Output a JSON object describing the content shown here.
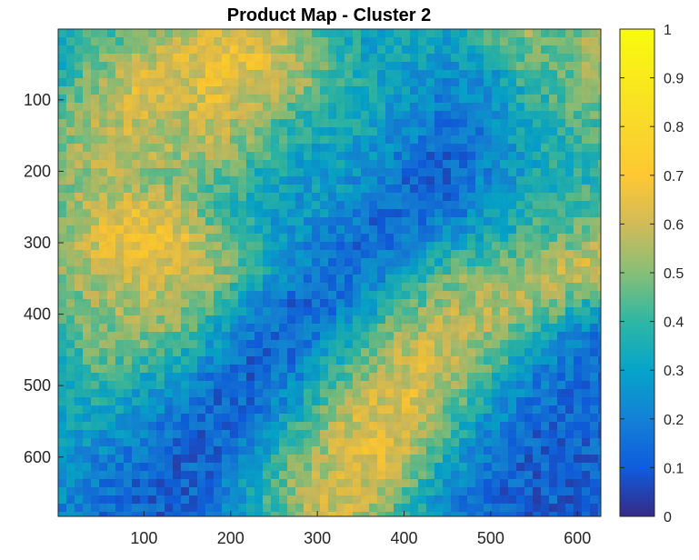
{
  "chart_data": {
    "type": "heatmap",
    "title": "Product Map - Cluster 2",
    "xlabel": "",
    "ylabel": "",
    "xlim": [
      1,
      627
    ],
    "ylim": [
      1,
      683
    ],
    "y_reversed": true,
    "x_ticks": [
      100,
      200,
      300,
      400,
      500,
      600
    ],
    "y_ticks": [
      100,
      200,
      300,
      400,
      500,
      600
    ],
    "colormap": "parula",
    "colorbar": {
      "range": [
        0,
        1
      ],
      "ticks": [
        0,
        0.1,
        0.2,
        0.3,
        0.4,
        0.5,
        0.6,
        0.7,
        0.8,
        0.9,
        1
      ],
      "tick_labels": [
        "0",
        "0.1",
        "0.2",
        "0.3",
        "0.4",
        "0.5",
        "0.6",
        "0.7",
        "0.8",
        "0.9",
        "1"
      ]
    },
    "grid_rows": 17,
    "grid_cols": 15,
    "grid_values": [
      [
        0.34,
        0.4,
        0.45,
        0.52,
        0.62,
        0.6,
        0.53,
        0.38,
        0.3,
        0.34,
        0.33,
        0.46,
        0.53,
        0.46,
        0.6
      ],
      [
        0.35,
        0.48,
        0.58,
        0.62,
        0.69,
        0.67,
        0.55,
        0.42,
        0.33,
        0.31,
        0.28,
        0.3,
        0.46,
        0.48,
        0.58
      ],
      [
        0.4,
        0.52,
        0.63,
        0.6,
        0.66,
        0.6,
        0.55,
        0.42,
        0.32,
        0.28,
        0.22,
        0.26,
        0.38,
        0.45,
        0.5
      ],
      [
        0.5,
        0.56,
        0.6,
        0.55,
        0.6,
        0.52,
        0.4,
        0.38,
        0.33,
        0.24,
        0.18,
        0.23,
        0.34,
        0.42,
        0.45
      ],
      [
        0.5,
        0.56,
        0.58,
        0.55,
        0.56,
        0.48,
        0.32,
        0.3,
        0.28,
        0.18,
        0.12,
        0.2,
        0.32,
        0.38,
        0.4
      ],
      [
        0.48,
        0.55,
        0.52,
        0.5,
        0.45,
        0.35,
        0.3,
        0.3,
        0.22,
        0.14,
        0.14,
        0.25,
        0.32,
        0.38,
        0.4
      ],
      [
        0.46,
        0.6,
        0.66,
        0.6,
        0.44,
        0.34,
        0.28,
        0.25,
        0.15,
        0.14,
        0.18,
        0.28,
        0.38,
        0.42,
        0.5
      ],
      [
        0.52,
        0.62,
        0.7,
        0.66,
        0.52,
        0.4,
        0.25,
        0.18,
        0.14,
        0.22,
        0.3,
        0.38,
        0.42,
        0.5,
        0.58
      ],
      [
        0.5,
        0.58,
        0.62,
        0.62,
        0.55,
        0.38,
        0.22,
        0.14,
        0.2,
        0.32,
        0.48,
        0.5,
        0.56,
        0.62,
        0.64
      ],
      [
        0.44,
        0.52,
        0.56,
        0.54,
        0.42,
        0.22,
        0.13,
        0.16,
        0.3,
        0.46,
        0.55,
        0.58,
        0.56,
        0.44,
        0.3
      ],
      [
        0.4,
        0.48,
        0.5,
        0.46,
        0.32,
        0.16,
        0.13,
        0.24,
        0.44,
        0.56,
        0.6,
        0.52,
        0.4,
        0.22,
        0.16
      ],
      [
        0.38,
        0.44,
        0.4,
        0.34,
        0.2,
        0.12,
        0.18,
        0.38,
        0.52,
        0.62,
        0.58,
        0.45,
        0.26,
        0.16,
        0.14
      ],
      [
        0.34,
        0.36,
        0.3,
        0.22,
        0.14,
        0.14,
        0.26,
        0.48,
        0.6,
        0.64,
        0.52,
        0.34,
        0.18,
        0.14,
        0.14
      ],
      [
        0.32,
        0.3,
        0.22,
        0.16,
        0.12,
        0.18,
        0.38,
        0.55,
        0.66,
        0.6,
        0.42,
        0.24,
        0.14,
        0.12,
        0.14
      ],
      [
        0.28,
        0.22,
        0.16,
        0.12,
        0.14,
        0.28,
        0.46,
        0.58,
        0.66,
        0.55,
        0.32,
        0.18,
        0.12,
        0.12,
        0.14
      ],
      [
        0.25,
        0.18,
        0.14,
        0.12,
        0.16,
        0.34,
        0.52,
        0.62,
        0.6,
        0.44,
        0.24,
        0.14,
        0.12,
        0.12,
        0.14
      ],
      [
        0.22,
        0.16,
        0.12,
        0.1,
        0.16,
        0.32,
        0.52,
        0.6,
        0.54,
        0.36,
        0.18,
        0.12,
        0.12,
        0.12,
        0.14
      ]
    ]
  }
}
